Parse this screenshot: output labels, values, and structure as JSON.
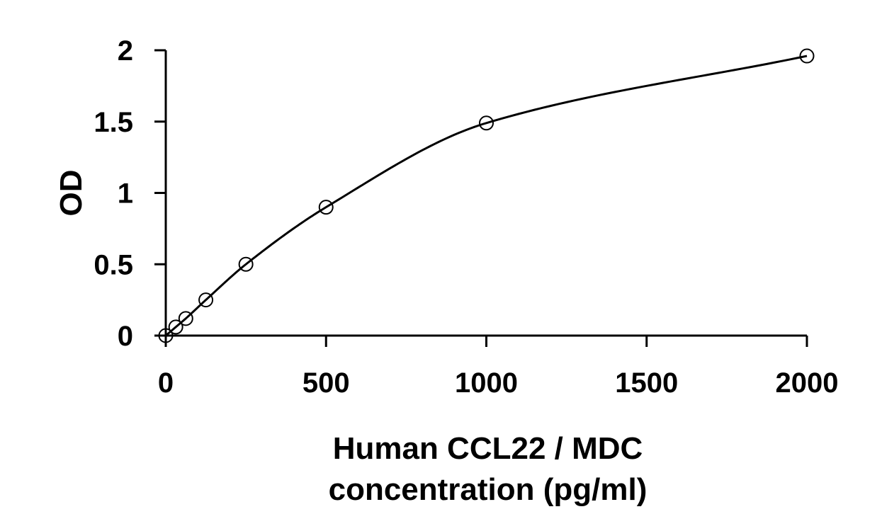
{
  "chart_data": {
    "type": "scatter",
    "title": "",
    "xlabel_lines": [
      "Human CCL22 / MDC",
      "concentration (pg/ml)"
    ],
    "ylabel": "OD",
    "xlim": [
      0,
      2000
    ],
    "ylim": [
      0,
      2
    ],
    "x_ticks": [
      0,
      500,
      1000,
      1500,
      2000
    ],
    "y_ticks": [
      0,
      0.5,
      1,
      1.5,
      2
    ],
    "x_tick_labels": [
      "0",
      "500",
      "1000",
      "1500",
      "2000"
    ],
    "y_tick_labels": [
      "0",
      "0.5",
      "1",
      "1.5",
      "2"
    ],
    "grid": false,
    "legend": "none",
    "series": [
      {
        "marker": "open-circle",
        "line": "smooth-fit",
        "x": [
          0,
          31.25,
          62.5,
          125,
          250,
          500,
          1000,
          2000
        ],
        "y": [
          0.0,
          0.06,
          0.12,
          0.25,
          0.5,
          0.9,
          1.49,
          1.96
        ]
      }
    ]
  }
}
